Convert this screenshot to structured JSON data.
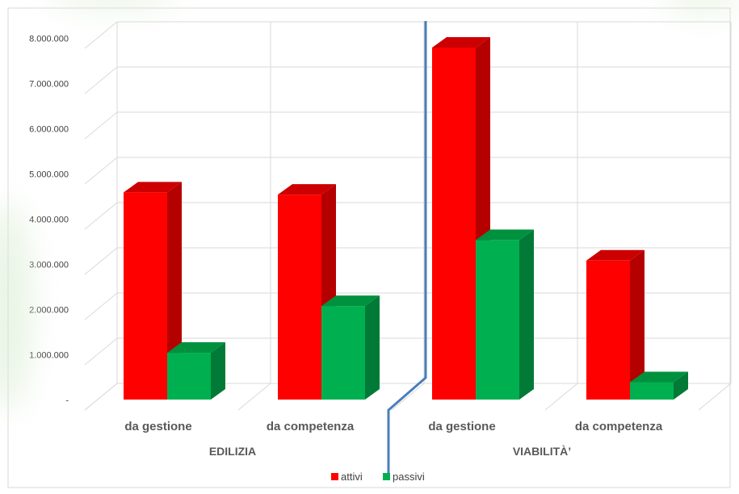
{
  "colors": {
    "attivi": "#ff0000",
    "attivi_side": "#b50000",
    "attivi_top": "#cc0000",
    "passivi": "#00b050",
    "passivi_side": "#007a36",
    "passivi_top": "#00913f",
    "gridline": "#d9d9d9",
    "divider": "#4a7ebb",
    "frame": "#d9d9d9",
    "background_glow": "#d8ecd0"
  },
  "chart_data": {
    "type": "bar",
    "groups": [
      "EDILIZIA",
      "VIABILITÀ’"
    ],
    "categories": [
      "da gestione",
      "da competenza",
      "da gestione",
      "da competenza"
    ],
    "category_groups": [
      0,
      0,
      1,
      1
    ],
    "series": [
      {
        "name": "attivi",
        "values": [
          4650000,
          4600000,
          7900000,
          3120000
        ]
      },
      {
        "name": "passivi",
        "values": [
          1050000,
          2100000,
          3580000,
          390000
        ]
      }
    ],
    "ylim": [
      0,
      8000000
    ],
    "yticks": [
      0,
      1000000,
      2000000,
      3000000,
      4000000,
      5000000,
      6000000,
      7000000,
      8000000
    ],
    "ytick_labels": [
      "-",
      "1.000.000",
      "2.000.000",
      "3.000.000",
      "4.000.000",
      "5.000.000",
      "6.000.000",
      "7.000.000",
      "8.000.000"
    ],
    "grid": true,
    "legend_position": "bottom",
    "bar_style": "3d"
  }
}
